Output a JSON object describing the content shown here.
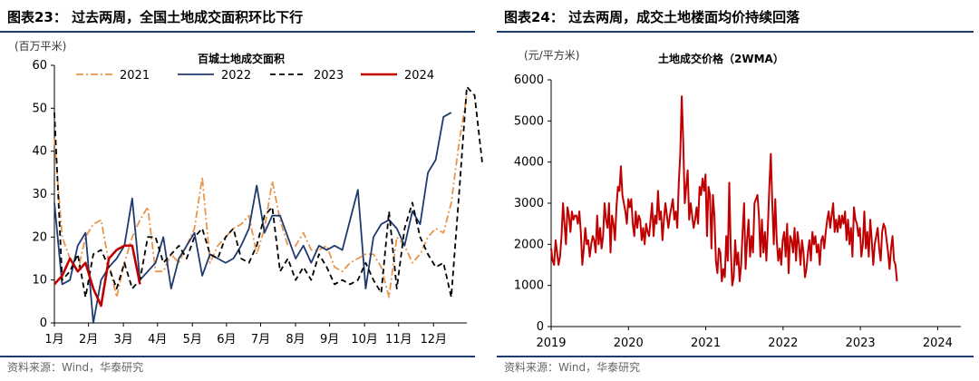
{
  "colors": {
    "rule": "#1f3a6e",
    "s2021": "#e8954a",
    "s2022": "#1f3a6e",
    "s2023": "#000000",
    "s2024": "#c00000",
    "price": "#c00000"
  },
  "left": {
    "figure_title": "图表23：  过去两周，全国土地成交面积环比下行",
    "source": "资料来源：Wind，华泰研究"
  },
  "right": {
    "figure_title": "图表24：  过去两周，成交土地楼面均价持续回落",
    "source": "资料来源：Wind，华泰研究"
  },
  "chart_data": [
    {
      "type": "line",
      "title": "百城土地成交面积",
      "ylabel": "(百万平米)",
      "ylim": [
        0,
        60
      ],
      "yticks": [
        0,
        10,
        20,
        30,
        40,
        50,
        60
      ],
      "xlim": [
        0,
        52
      ],
      "xticks": [
        {
          "label": "1月",
          "week": 0
        },
        {
          "label": "2月",
          "week": 4.3
        },
        {
          "label": "3月",
          "week": 8.7
        },
        {
          "label": "4月",
          "week": 13
        },
        {
          "label": "5月",
          "week": 17.4
        },
        {
          "label": "6月",
          "week": 21.7
        },
        {
          "label": "7月",
          "week": 26
        },
        {
          "label": "8月",
          "week": 30.4
        },
        {
          "label": "9月",
          "week": 34.7
        },
        {
          "label": "10月",
          "week": 39.1
        },
        {
          "label": "11月",
          "week": 43.4
        },
        {
          "label": "12月",
          "week": 47.8
        }
      ],
      "series": [
        {
          "name": "2021",
          "style": "dashdot",
          "color": "#e8954a",
          "values": [
            43,
            20,
            15,
            12,
            20,
            23,
            24,
            14,
            6,
            14,
            20,
            24,
            27,
            12,
            12,
            16,
            14,
            18,
            22,
            34,
            14,
            18,
            20,
            22,
            23,
            25,
            16,
            22,
            33,
            24,
            18,
            18,
            21,
            17,
            17,
            18,
            13,
            12,
            14,
            15,
            16,
            16,
            13,
            6,
            20,
            18,
            14,
            16,
            20,
            22,
            21,
            28,
            42,
            53
          ]
        },
        {
          "name": "2022",
          "style": "solid",
          "color": "#1f3a6e",
          "values": [
            28,
            9,
            10,
            18,
            21,
            0,
            10,
            13,
            15,
            18,
            29,
            10,
            12,
            14,
            20,
            8,
            15,
            18,
            21,
            11,
            16,
            15,
            14,
            15,
            18,
            22,
            32,
            21,
            25,
            25,
            20,
            15,
            18,
            14,
            18,
            17,
            18,
            17,
            24,
            31,
            8,
            20,
            23,
            24,
            22,
            18,
            26,
            23,
            35,
            38,
            48,
            49
          ]
        },
        {
          "name": "2023",
          "style": "dashed",
          "color": "#000000",
          "values": [
            49,
            10,
            12,
            16,
            6,
            16,
            17,
            13,
            8,
            14,
            8,
            10,
            20,
            20,
            14,
            16,
            18,
            15,
            20,
            22,
            16,
            15,
            20,
            22,
            15,
            14,
            18,
            25,
            27,
            12,
            15,
            10,
            13,
            10,
            16,
            13,
            9,
            10,
            9,
            10,
            14,
            10,
            7,
            26,
            8,
            22,
            28,
            20,
            16,
            13,
            14,
            6,
            30,
            55,
            53,
            37
          ]
        },
        {
          "name": "2024",
          "style": "solid",
          "color": "#c00000",
          "values": [
            9,
            11,
            15,
            12,
            14,
            8,
            4,
            15,
            17,
            18,
            18,
            9
          ]
        }
      ]
    },
    {
      "type": "line",
      "title": "土地成交价格（2WMA）",
      "ylabel": "(元/平方米)",
      "ylim": [
        0,
        6000
      ],
      "yticks": [
        0,
        1000,
        2000,
        3000,
        4000,
        5000,
        6000
      ],
      "xlim": [
        2019,
        2024.3
      ],
      "xticks": [
        {
          "label": "2019",
          "value": 2019
        },
        {
          "label": "2020",
          "value": 2020
        },
        {
          "label": "2021",
          "value": 2021
        },
        {
          "label": "2022",
          "value": 2022
        },
        {
          "label": "2023",
          "value": 2023
        },
        {
          "label": "2024",
          "value": 2024
        }
      ],
      "x_start": 2019,
      "x_step": 0.0192,
      "series": [
        {
          "name": "土地成交价格（2WMA）",
          "color": "#c00000",
          "values": [
            1900,
            1600,
            1500,
            2100,
            1800,
            1500,
            1700,
            2200,
            3000,
            2500,
            2000,
            2900,
            2700,
            2300,
            2800,
            2600,
            2700,
            2700,
            2500,
            2800,
            2300,
            1500,
            1900,
            2400,
            2000,
            2100,
            1700,
            2000,
            2200,
            2100,
            1800,
            2700,
            2000,
            2400,
            1900,
            2200,
            3000,
            2600,
            2400,
            3000,
            1800,
            2700,
            2500,
            2100,
            2900,
            3400,
            3300,
            3900,
            3200,
            3000,
            2800,
            2500,
            3100,
            2900,
            3100,
            2500,
            2200,
            2800,
            2400,
            2700,
            2600,
            2100,
            2400,
            2000,
            2500,
            2300,
            2200,
            2600,
            3000,
            2200,
            2700,
            2500,
            3300,
            2600,
            2800,
            2100,
            2600,
            3000,
            2700,
            2400,
            2700,
            2900,
            3100,
            2600,
            2800,
            2400,
            3500,
            4200,
            5600,
            4500,
            3000,
            3400,
            3800,
            2600,
            3000,
            2700,
            2400,
            2600,
            2900,
            2500,
            3400,
            3200,
            3600,
            3300,
            3700,
            2200,
            3400,
            3200,
            1900,
            3200,
            2700,
            1600,
            1300,
            1900,
            1800,
            1100,
            1400,
            1200,
            2200,
            1600,
            3500,
            1900,
            1000,
            1200,
            2100,
            1500,
            1800,
            1100,
            1500,
            2300,
            3000,
            1400,
            2100,
            2600,
            1700,
            2200,
            1800,
            3000,
            3100,
            3200,
            2700,
            1700,
            2600,
            1800,
            2300,
            1600,
            2400,
            3400,
            4200,
            3000,
            2000,
            3100,
            2100,
            1600,
            1900,
            1500,
            2100,
            2300,
            1700,
            2500,
            1300,
            2200,
            2100,
            1800,
            2400,
            1600,
            2300,
            2000,
            1500,
            2100,
            1800,
            1200,
            1400,
            1800,
            2100,
            1600,
            2300,
            2000,
            2200,
            1800,
            2000,
            1500,
            2100,
            2200,
            1900,
            2300,
            2600,
            2800,
            2400,
            2700,
            3000,
            2300,
            2600,
            2300,
            2700,
            2400,
            2700,
            2500,
            2800,
            2100,
            2600,
            2000,
            2400,
            1700,
            2900,
            2600,
            2500,
            2200,
            2400,
            1700,
            2000,
            2800,
            1900,
            2300,
            1700,
            2600,
            2100,
            1500,
            2000,
            2200,
            2400,
            1900,
            1600,
            2300,
            2500,
            2400,
            2100,
            1800,
            1400,
            1900,
            2200,
            1600,
            1500,
            1100
          ]
        }
      ]
    }
  ]
}
